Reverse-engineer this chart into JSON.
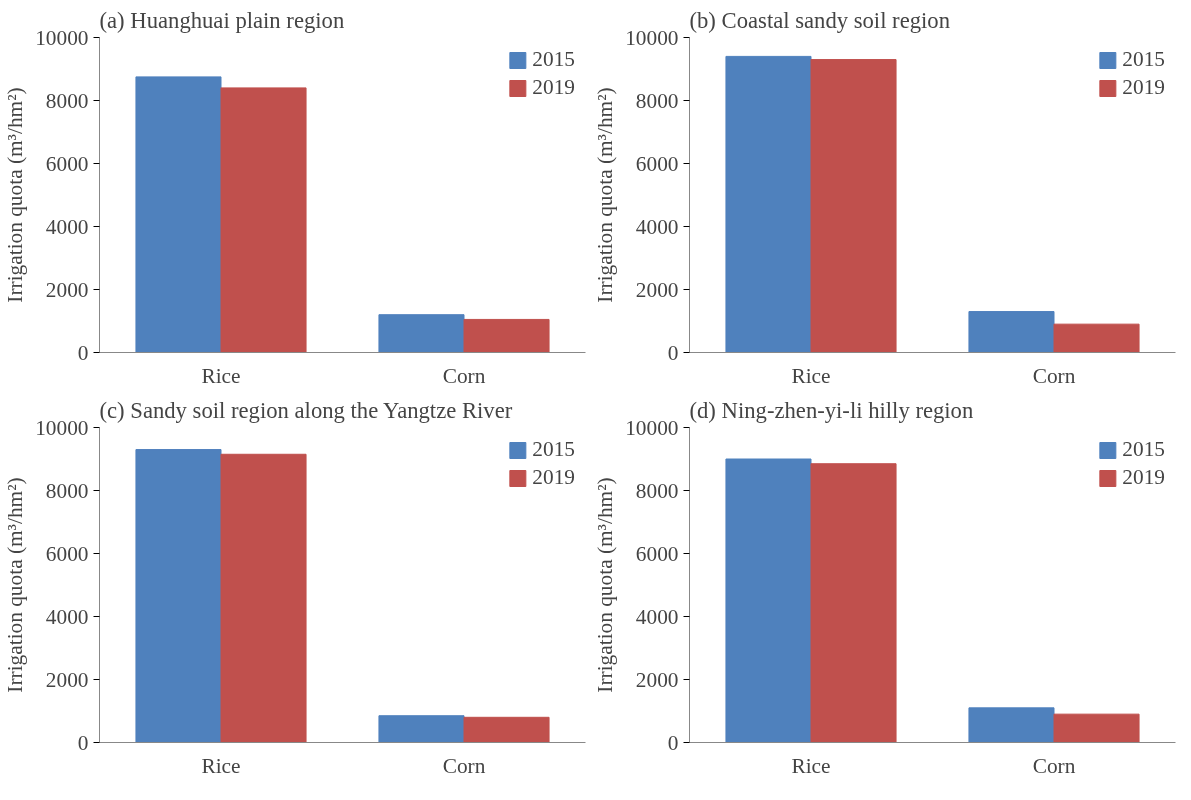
{
  "chart_data": [
    {
      "type": "bar",
      "title": "(a) Huanghuai plain region",
      "ylabel": "Irrigation quota (m³/hm²)",
      "categories": [
        "Rice",
        "Corn"
      ],
      "series": [
        {
          "name": "2015",
          "color": "#4f81bd",
          "values": [
            8750,
            1200
          ]
        },
        {
          "name": "2019",
          "color": "#c0504d",
          "values": [
            8400,
            1050
          ]
        }
      ],
      "ylim": [
        0,
        10000
      ],
      "yticks": [
        0,
        2000,
        4000,
        6000,
        8000,
        10000
      ],
      "grid": false,
      "legend": "top right"
    },
    {
      "type": "bar",
      "title": "(b) Coastal sandy soil region",
      "ylabel": "Irrigation quota (m³/hm²)",
      "categories": [
        "Rice",
        "Corn"
      ],
      "series": [
        {
          "name": "2015",
          "color": "#4f81bd",
          "values": [
            9400,
            1300
          ]
        },
        {
          "name": "2019",
          "color": "#c0504d",
          "values": [
            9300,
            900
          ]
        }
      ],
      "ylim": [
        0,
        10000
      ],
      "yticks": [
        0,
        2000,
        4000,
        6000,
        8000,
        10000
      ],
      "grid": false,
      "legend": "top right"
    },
    {
      "type": "bar",
      "title": "(c) Sandy soil region along the Yangtze River",
      "ylabel": "Irrigation quota (m³/hm²)",
      "categories": [
        "Rice",
        "Corn"
      ],
      "series": [
        {
          "name": "2015",
          "color": "#4f81bd",
          "values": [
            9300,
            850
          ]
        },
        {
          "name": "2019",
          "color": "#c0504d",
          "values": [
            9150,
            800
          ]
        }
      ],
      "ylim": [
        0,
        10000
      ],
      "yticks": [
        0,
        2000,
        4000,
        6000,
        8000,
        10000
      ],
      "grid": false,
      "legend": "top right"
    },
    {
      "type": "bar",
      "title": "(d) Ning-zhen-yi-li hilly region",
      "ylabel": "Irrigation quota (m³/hm²)",
      "categories": [
        "Rice",
        "Corn"
      ],
      "series": [
        {
          "name": "2015",
          "color": "#4f81bd",
          "values": [
            9000,
            1100
          ]
        },
        {
          "name": "2019",
          "color": "#c0504d",
          "values": [
            8850,
            900
          ]
        }
      ],
      "ylim": [
        0,
        10000
      ],
      "yticks": [
        0,
        2000,
        4000,
        6000,
        8000,
        10000
      ],
      "grid": false,
      "legend": "top right"
    }
  ]
}
